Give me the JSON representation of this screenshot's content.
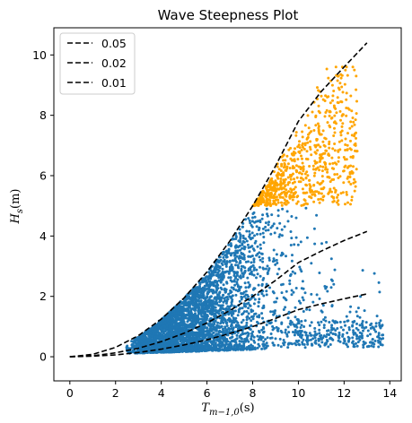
{
  "chart_data": {
    "type": "scatter",
    "title": "Wave Steepness Plot",
    "xlabel": {
      "base": "T",
      "sub": "m−1,0",
      "unit": "(s)"
    },
    "ylabel": {
      "base": "H",
      "sub": "s",
      "unit": "(m)"
    },
    "xlim": [
      -0.7,
      14.5
    ],
    "ylim": [
      -0.8,
      10.9
    ],
    "xticks": [
      "0",
      "2",
      "4",
      "6",
      "8",
      "10",
      "12",
      "14"
    ],
    "yticks": [
      "0",
      "2",
      "4",
      "6",
      "8",
      "10"
    ],
    "grid": false,
    "legend_position": "upper-left",
    "scatter_series": [
      {
        "color": "#1f77b4",
        "note_range": {
          "hs_max": 5.0
        }
      },
      {
        "color": "#ffa500",
        "note_range": {
          "hs_min": 5.0
        }
      }
    ],
    "steepness_lines": [
      {
        "name": "0.05",
        "steepness": 0.05,
        "color": "#000000",
        "x": [
          0,
          1,
          2,
          3,
          4,
          5,
          6,
          7,
          8,
          9,
          10,
          11,
          12,
          13
        ],
        "y": [
          0.0,
          0.08,
          0.31,
          0.7,
          1.25,
          1.95,
          2.81,
          3.83,
          5.0,
          6.32,
          7.8,
          8.79,
          9.6,
          10.4
        ]
      },
      {
        "name": "0.02",
        "steepness": 0.02,
        "color": "#000000",
        "x": [
          0,
          1,
          2,
          3,
          4,
          5,
          6,
          7,
          8,
          9,
          10,
          11,
          12,
          13
        ],
        "y": [
          0.0,
          0.03,
          0.13,
          0.28,
          0.5,
          0.78,
          1.12,
          1.53,
          2.0,
          2.53,
          3.12,
          3.5,
          3.85,
          4.15
        ]
      },
      {
        "name": "0.01",
        "steepness": 0.01,
        "color": "#000000",
        "x": [
          0,
          1,
          2,
          3,
          4,
          5,
          6,
          7,
          8,
          9,
          10,
          11,
          12,
          13
        ],
        "y": [
          0.0,
          0.02,
          0.06,
          0.14,
          0.25,
          0.39,
          0.56,
          0.77,
          1.0,
          1.27,
          1.56,
          1.75,
          1.92,
          2.08
        ]
      }
    ]
  }
}
